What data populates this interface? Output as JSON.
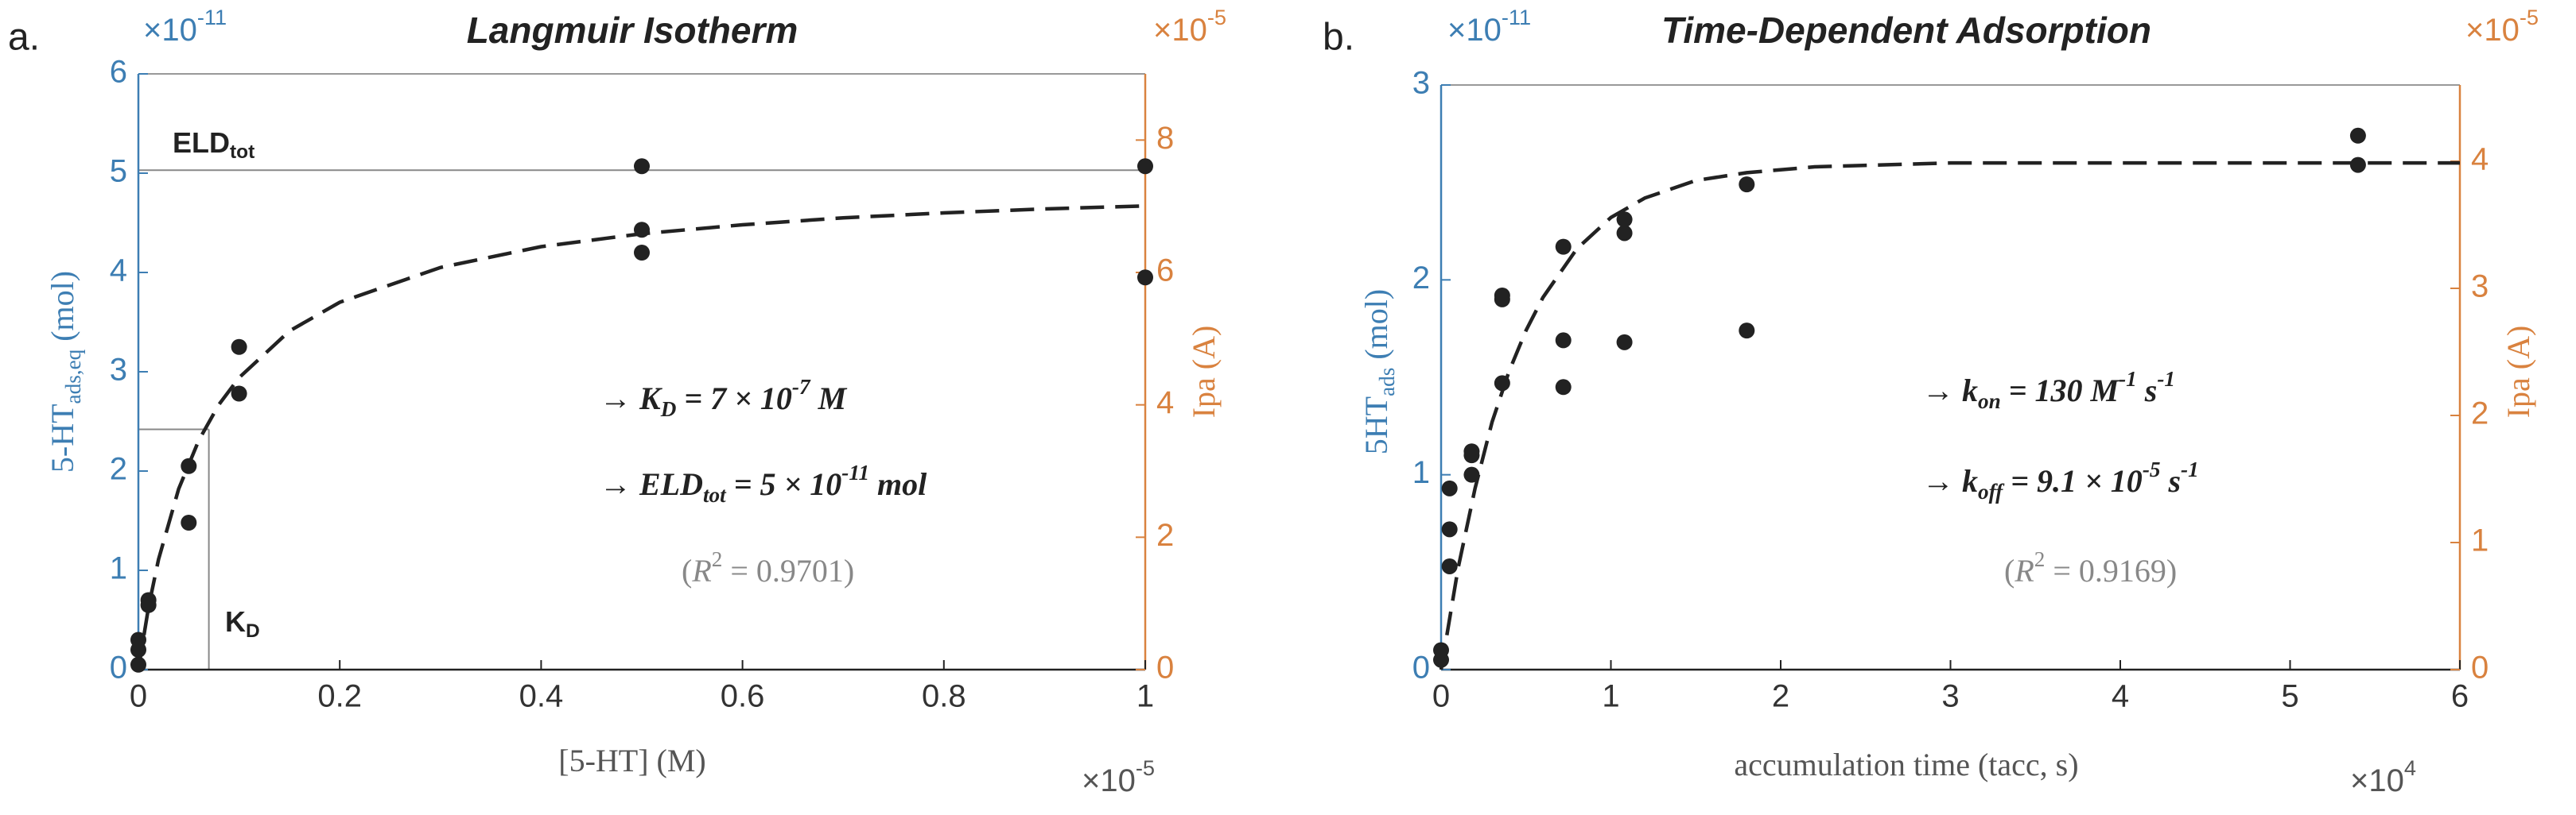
{
  "chart_data": [
    {
      "type": "scatter",
      "panel_label": "a.",
      "title": "Langmuir Isotherm",
      "xlabel": [
        {
          "t": "[5-HT] (M)"
        }
      ],
      "ylabel": [
        {
          "t": "5-HT"
        },
        {
          "t": "ads,eq",
          "s": "sub"
        },
        {
          "t": " (mol)"
        }
      ],
      "y2label": [
        {
          "t": "Ipa (A)"
        }
      ],
      "x_exponent": [
        {
          "t": "×10"
        },
        {
          "t": "-5",
          "s": "sup"
        }
      ],
      "y_exponent": [
        {
          "t": "×10"
        },
        {
          "t": "-11",
          "s": "sup"
        }
      ],
      "y2_exponent": [
        {
          "t": "×10"
        },
        {
          "t": "-5",
          "s": "sup"
        }
      ],
      "xlim": [
        0,
        1
      ],
      "xticks": [
        0,
        0.2,
        0.4,
        0.6,
        0.8,
        1
      ],
      "ylim": [
        0,
        6
      ],
      "yticks": [
        0,
        1,
        2,
        3,
        4,
        5,
        6
      ],
      "y2lim": [
        0,
        9
      ],
      "y2ticks": [
        0,
        2,
        4,
        6,
        8
      ],
      "y_color": "#3d7eb3",
      "y2_color": "#d9823f",
      "color": "#222222",
      "x": [
        0,
        0,
        0,
        0.01,
        0.01,
        0.05,
        0.05,
        0.1,
        0.1,
        0.5,
        0.5,
        0.5,
        1,
        1
      ],
      "y": [
        0.05,
        0.2,
        0.3,
        0.65,
        0.7,
        2.05,
        1.48,
        3.25,
        2.78,
        5.07,
        4.43,
        4.2,
        5.07,
        3.95
      ],
      "fit": {
        "x": [
          0,
          0.01,
          0.02,
          0.04,
          0.06,
          0.08,
          0.1,
          0.15,
          0.2,
          0.3,
          0.4,
          0.5,
          0.6,
          0.7,
          0.8,
          0.9,
          1
        ],
        "values": [
          0,
          0.625,
          1.11,
          1.82,
          2.31,
          2.67,
          2.94,
          3.41,
          3.7,
          4.05,
          4.26,
          4.39,
          4.48,
          4.55,
          4.6,
          4.64,
          4.67
        ]
      },
      "ref_lines": [
        {
          "x": [
            0,
            1
          ],
          "values": [
            5.03,
            5.03
          ]
        },
        {
          "x": [
            0.07,
            0.07
          ],
          "values": [
            0,
            2.42
          ]
        },
        {
          "x": [
            0,
            0.07
          ],
          "values": [
            2.42,
            2.42
          ]
        }
      ],
      "annotations": [
        [
          {
            "t": "→ K"
          },
          {
            "t": "D",
            "s": "sub"
          },
          {
            "t": " = 7 × 10"
          },
          {
            "t": "-7",
            "s": "sup"
          },
          {
            "t": " M"
          }
        ],
        [
          {
            "t": "→ ELD"
          },
          {
            "t": "tot",
            "s": "sub"
          },
          {
            "t": " = 5 × 10"
          },
          {
            "t": "-11",
            "s": "sup"
          },
          {
            "t": " mol"
          }
        ],
        [
          {
            "t": "("
          },
          {
            "t": "R",
            "s": "i"
          },
          {
            "t": "2",
            "s": "sup"
          },
          {
            "t": " = 0.9701)"
          }
        ],
        [
          {
            "t": "ELD"
          },
          {
            "t": "tot",
            "s": "sub"
          }
        ],
        [
          {
            "t": "K"
          },
          {
            "t": "D",
            "s": "sub"
          }
        ]
      ]
    },
    {
      "type": "scatter",
      "panel_label": "b.",
      "title": "Time-Dependent Adsorption",
      "xlabel": [
        {
          "t": "accumulation time (tacc, s)"
        }
      ],
      "ylabel": [
        {
          "t": "5HT"
        },
        {
          "t": "ads",
          "s": "sub"
        },
        {
          "t": " (mol)"
        }
      ],
      "y2label": [
        {
          "t": "Ipa (A)"
        }
      ],
      "x_exponent": [
        {
          "t": "×10"
        },
        {
          "t": "4",
          "s": "sup"
        }
      ],
      "y_exponent": [
        {
          "t": "×10"
        },
        {
          "t": "-11",
          "s": "sup"
        }
      ],
      "y2_exponent": [
        {
          "t": "×10"
        },
        {
          "t": "-5",
          "s": "sup"
        }
      ],
      "xlim": [
        0,
        6
      ],
      "xticks": [
        0,
        1,
        2,
        3,
        4,
        5,
        6
      ],
      "ylim": [
        0,
        3
      ],
      "yticks": [
        0,
        1,
        2,
        3
      ],
      "y2lim": [
        0,
        4.6
      ],
      "y2ticks": [
        0,
        1,
        2,
        3,
        4
      ],
      "y_color": "#3d7eb3",
      "y2_color": "#d9823f",
      "color": "#222222",
      "x": [
        0,
        0,
        0.05,
        0.05,
        0.05,
        0.18,
        0.18,
        0.18,
        0.36,
        0.36,
        0.36,
        0.72,
        0.72,
        0.72,
        1.08,
        1.08,
        1.08,
        1.8,
        1.8,
        5.4,
        5.4
      ],
      "y": [
        0.05,
        0.1,
        0.93,
        0.72,
        0.53,
        1.12,
        1.1,
        1.0,
        1.92,
        1.9,
        1.47,
        2.17,
        1.69,
        1.45,
        2.31,
        2.24,
        1.68,
        2.49,
        1.74,
        2.74,
        2.59
      ],
      "fit": {
        "x": [
          0,
          0.1,
          0.2,
          0.3,
          0.4,
          0.5,
          0.6,
          0.8,
          1,
          1.2,
          1.5,
          1.8,
          2.2,
          3,
          4,
          5,
          6
        ],
        "values": [
          0,
          0.52,
          0.93,
          1.27,
          1.53,
          1.74,
          1.91,
          2.16,
          2.32,
          2.42,
          2.51,
          2.55,
          2.58,
          2.6,
          2.6,
          2.6,
          2.6
        ]
      },
      "annotations": [
        [
          {
            "t": "→ k"
          },
          {
            "t": "on",
            "s": "sub"
          },
          {
            "t": " = 130 M"
          },
          {
            "t": "-1",
            "s": "sup"
          },
          {
            "t": " s"
          },
          {
            "t": "-1",
            "s": "sup"
          }
        ],
        [
          {
            "t": "→ k"
          },
          {
            "t": "off",
            "s": "sub"
          },
          {
            "t": "  = 9.1 × 10"
          },
          {
            "t": "-5",
            "s": "sup"
          },
          {
            "t": " s"
          },
          {
            "t": "-1",
            "s": "sup"
          }
        ],
        [
          {
            "t": "("
          },
          {
            "t": "R",
            "s": "i"
          },
          {
            "t": "2",
            "s": "sup"
          },
          {
            "t": " = 0.9169)"
          }
        ]
      ]
    }
  ]
}
